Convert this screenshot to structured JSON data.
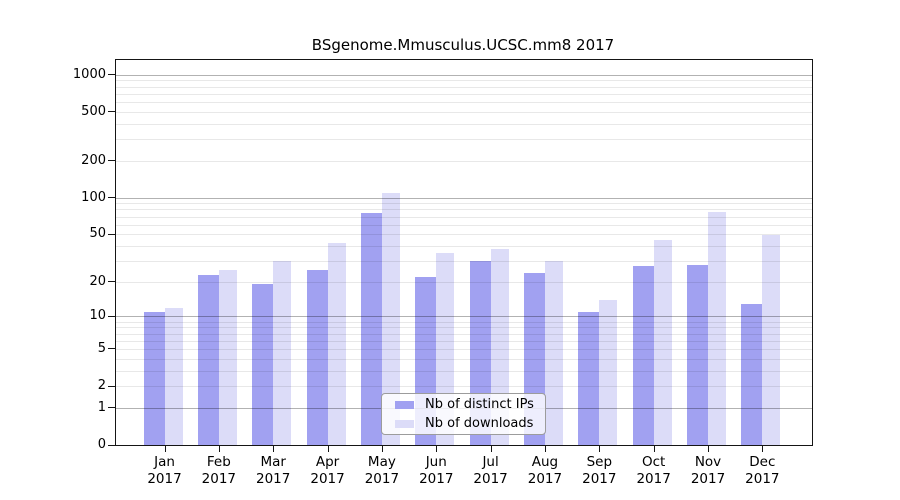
{
  "chart_data": {
    "type": "bar",
    "title": "BSgenome.Mmusculus.UCSC.mm8 2017",
    "categories": [
      "Jan",
      "Feb",
      "Mar",
      "Apr",
      "May",
      "Jun",
      "Jul",
      "Aug",
      "Sep",
      "Oct",
      "Nov",
      "Dec"
    ],
    "year": "2017",
    "series": [
      {
        "name": "Nb of distinct IPs",
        "color": "#a1a1f1",
        "values": [
          11,
          23,
          19,
          25,
          75,
          22,
          30,
          24,
          11,
          27,
          28,
          13
        ]
      },
      {
        "name": "Nb of downloads",
        "color": "#dcdcf8",
        "values": [
          12,
          25,
          30,
          42,
          110,
          35,
          38,
          30,
          14,
          45,
          77,
          49
        ]
      }
    ],
    "y_scale": "log10(value+1)",
    "y_ticks": [
      0,
      1,
      2,
      5,
      10,
      20,
      50,
      100,
      200,
      500,
      1000
    ],
    "ylim": [
      0,
      1320
    ],
    "xlabel": "",
    "ylabel": "",
    "grid": "horizontal major (1,10,100,1000) dark + minor (2-9 per decade) light, drawn over bars",
    "legend_position": "lower center inside plot"
  }
}
